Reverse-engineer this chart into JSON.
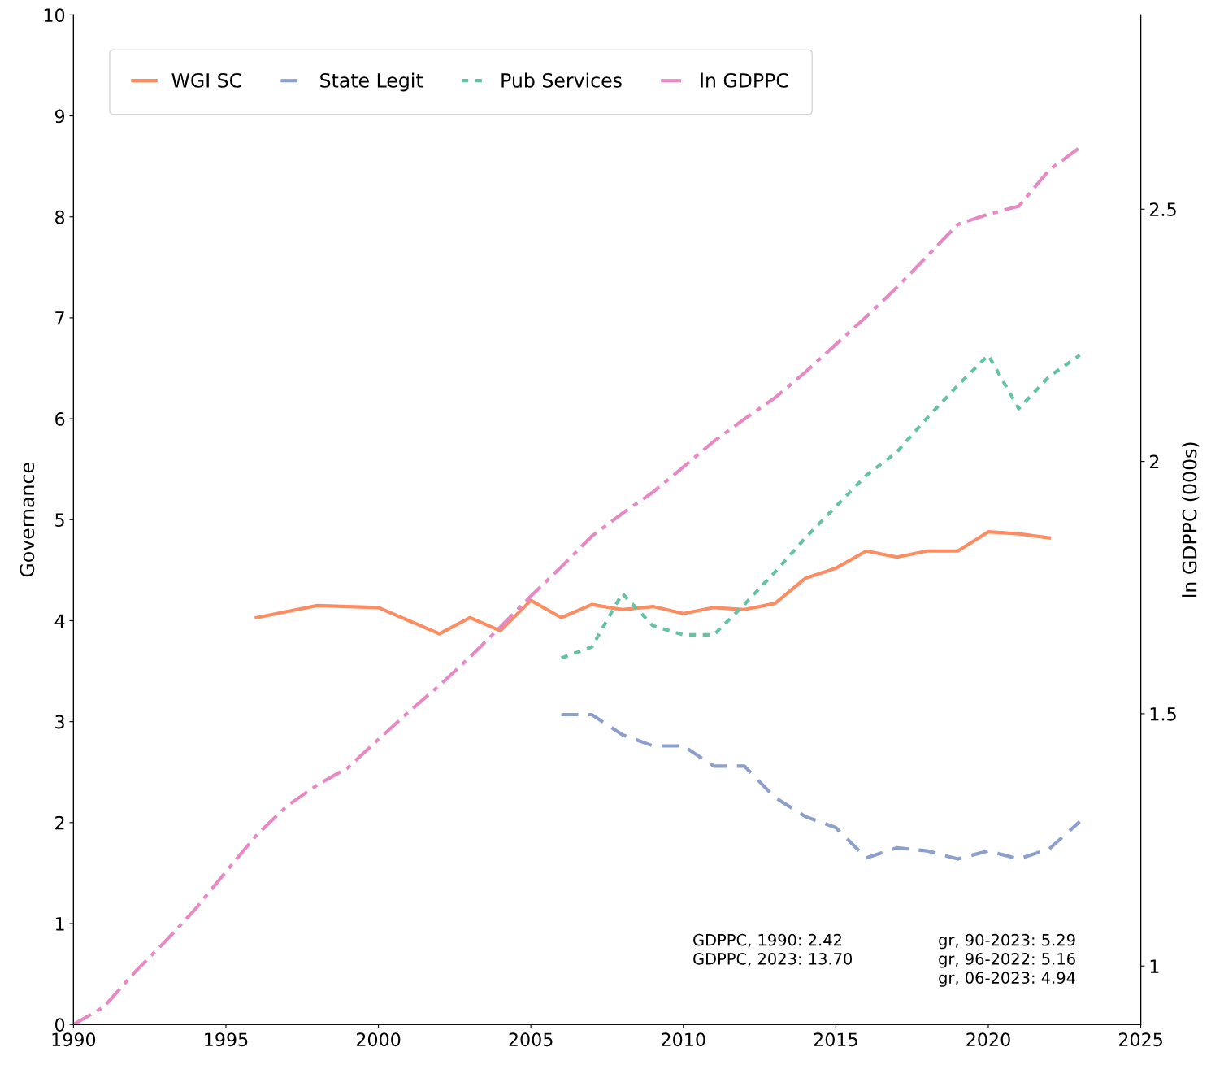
{
  "chart_data": {
    "type": "line",
    "ylabel": "Governance",
    "y2label": "ln GDPPC (000s)",
    "x": [
      1990,
      1991,
      1992,
      1993,
      1994,
      1995,
      1996,
      1997,
      1998,
      1999,
      2000,
      2001,
      2002,
      2003,
      2004,
      2005,
      2006,
      2007,
      2008,
      2009,
      2010,
      2011,
      2012,
      2013,
      2014,
      2015,
      2016,
      2017,
      2018,
      2019,
      2020,
      2021,
      2022,
      2023
    ],
    "series": [
      {
        "name": "WGI SC",
        "color": "#fc8d62",
        "line_style": "solid",
        "values": [
          null,
          null,
          null,
          null,
          null,
          null,
          4.03,
          4.09,
          4.15,
          4.14,
          4.13,
          4.0,
          3.87,
          4.03,
          3.9,
          4.2,
          4.03,
          4.16,
          4.11,
          4.14,
          4.07,
          4.13,
          4.11,
          4.17,
          4.42,
          4.52,
          4.69,
          4.63,
          4.69,
          4.69,
          4.88,
          4.86,
          4.82,
          null
        ]
      },
      {
        "name": "State Legit",
        "color": "#8da0cb",
        "line_style": "dashed",
        "values": [
          null,
          null,
          null,
          null,
          null,
          null,
          null,
          null,
          null,
          null,
          null,
          null,
          null,
          null,
          null,
          null,
          3.07,
          3.07,
          2.87,
          2.76,
          2.76,
          2.56,
          2.56,
          2.25,
          2.06,
          1.95,
          1.65,
          1.75,
          1.72,
          1.64,
          1.72,
          1.64,
          1.74,
          2.01
        ]
      },
      {
        "name": "Pub Services",
        "color": "#66c2a5",
        "line_style": "dotted",
        "values": [
          null,
          null,
          null,
          null,
          null,
          null,
          null,
          null,
          null,
          null,
          null,
          null,
          null,
          null,
          null,
          null,
          3.63,
          3.74,
          4.27,
          3.95,
          3.86,
          3.86,
          4.16,
          4.48,
          4.82,
          5.13,
          5.44,
          5.67,
          6.01,
          6.33,
          6.63,
          6.1,
          6.42,
          6.63
        ]
      },
      {
        "name": "ln GDPPC",
        "color": "#e78ac3",
        "line_style": "dashdot",
        "axis": "y2",
        "values": [
          0.884,
          0.919,
          0.987,
          1.048,
          1.113,
          1.187,
          1.259,
          1.317,
          1.359,
          1.393,
          1.449,
          1.504,
          1.556,
          1.612,
          1.672,
          1.733,
          1.791,
          1.852,
          1.897,
          1.939,
          1.989,
          2.04,
          2.084,
          2.126,
          2.177,
          2.232,
          2.287,
          2.345,
          2.407,
          2.47,
          2.49,
          2.506,
          2.578,
          2.622
        ]
      }
    ],
    "xlim": [
      1990,
      2025
    ],
    "xticks": [
      1990,
      1995,
      2000,
      2005,
      2010,
      2015,
      2020,
      2025
    ],
    "ylim": [
      0,
      10
    ],
    "yticks": [
      0,
      1,
      2,
      3,
      4,
      5,
      6,
      7,
      8,
      9,
      10
    ],
    "y2lim": [
      0.884,
      2.885
    ],
    "y2ticks": [
      1,
      1.5,
      2,
      2.5
    ],
    "grid": false,
    "legend": "top left",
    "annotations": [
      "GDPPC, 1990: 2.42\nGDPPC, 2023: 13.70",
      "gr, 90-2023: 5.29\ngr, 96-2022: 5.16\ngr, 06-2023: 4.94"
    ]
  }
}
